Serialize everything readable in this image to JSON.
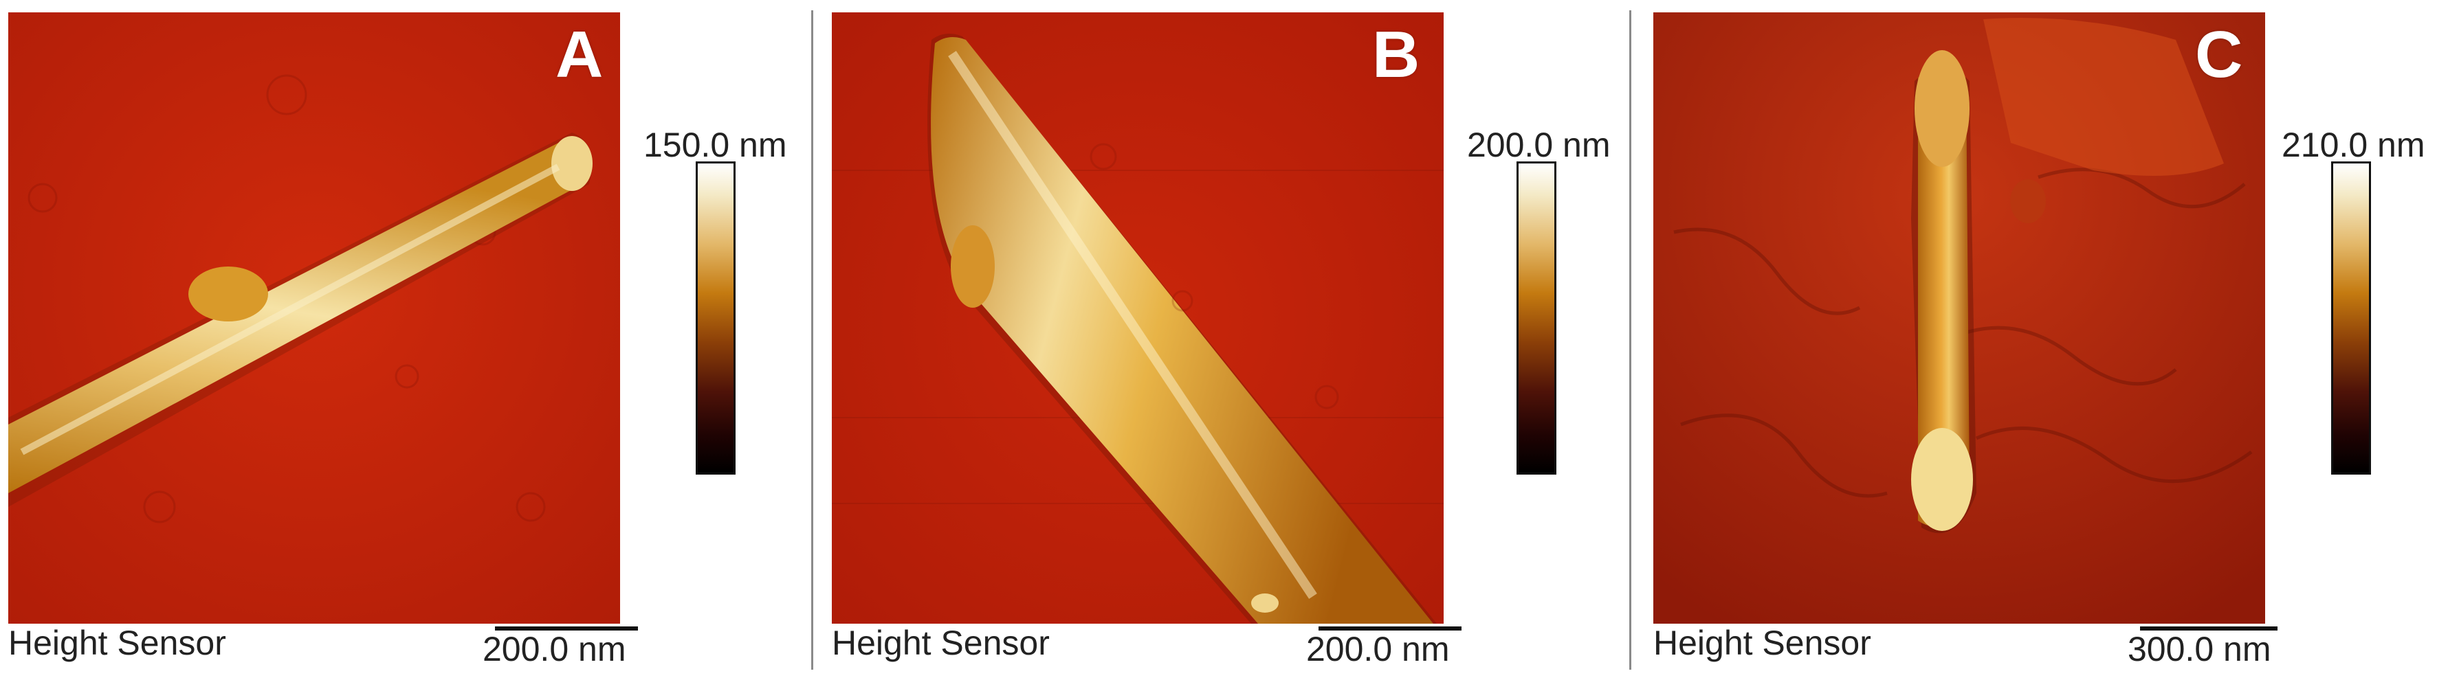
{
  "panels": [
    {
      "letter": "A",
      "channel": "Height Sensor",
      "scale_bar": "200.0 nm",
      "color_max": "150.0 nm"
    },
    {
      "letter": "B",
      "channel": "Height Sensor",
      "scale_bar": "200.0 nm",
      "color_max": "200.0 nm"
    },
    {
      "letter": "C",
      "channel": "Height Sensor",
      "scale_bar": "300.0 nm",
      "color_max": "210.0 nm"
    }
  ],
  "colors": {
    "substrate": "#c0210a",
    "feature_highlight": "#f7e6a0",
    "feature_mid": "#d39418",
    "colorbar_top": "#ffffff",
    "colorbar_bottom": "#000000"
  }
}
